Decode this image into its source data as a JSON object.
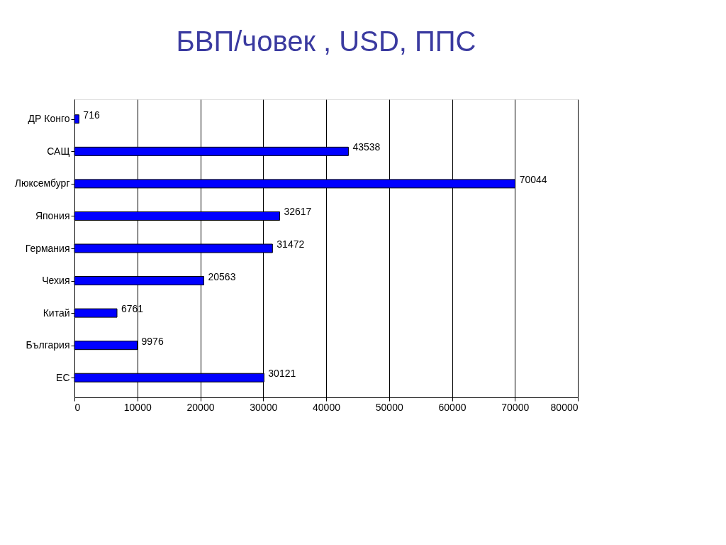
{
  "chart_data": {
    "type": "bar",
    "orientation": "horizontal",
    "title": "БВП/човек , USD, ППС",
    "categories": [
      "ДР Конго",
      "САЩ",
      "Люксембург",
      "Япония",
      "Германия",
      "Чехия",
      "Китай",
      "България",
      "ЕС"
    ],
    "values": [
      716,
      43538,
      70044,
      32617,
      31472,
      20563,
      6761,
      9976,
      30121
    ],
    "color": "#0000ff",
    "xlim": [
      0,
      80000
    ],
    "xticks": [
      0,
      10000,
      20000,
      30000,
      40000,
      50000,
      60000,
      70000,
      80000
    ],
    "grid": "x",
    "data_labels": true
  }
}
